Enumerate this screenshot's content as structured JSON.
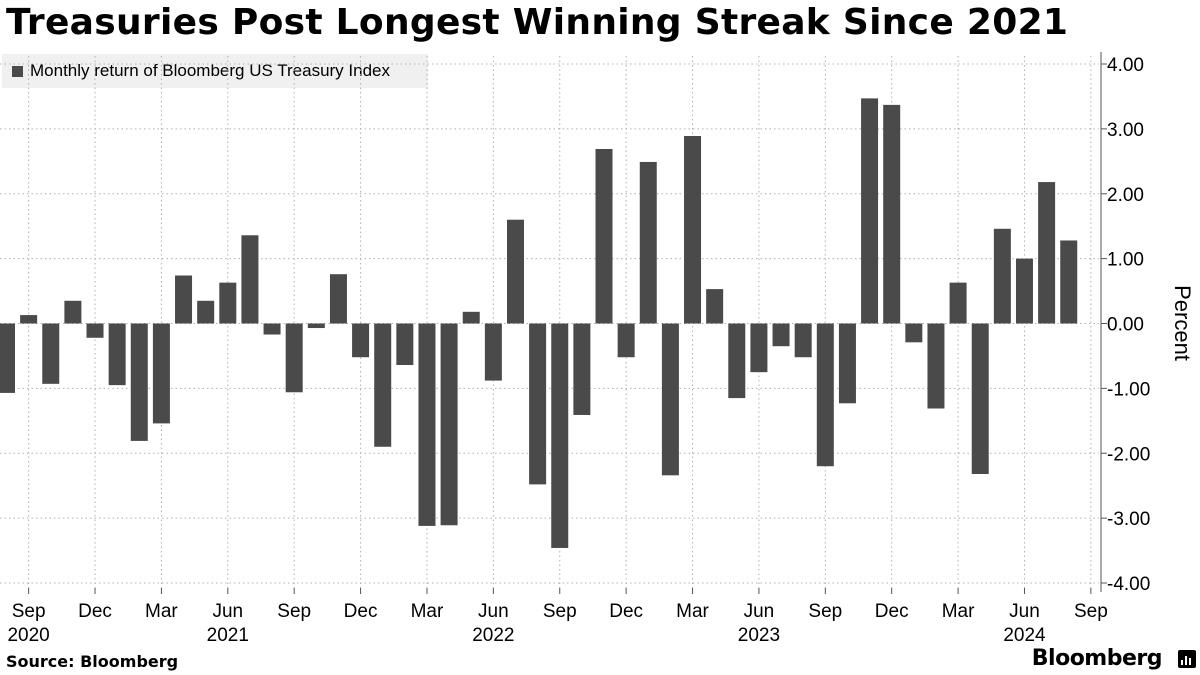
{
  "title": "Treasuries Post Longest Winning Streak Since 2021",
  "source": "Source: Bloomberg",
  "brand": "Bloomberg",
  "brand_icon": "bloomberg-chart-icon",
  "colors": {
    "bar": "#4a4a4a",
    "grid": "#b0b0b0",
    "axis": "#555555",
    "legend_bg": "#f0f0f0"
  },
  "chart_data": {
    "type": "bar",
    "title": "Treasuries Post Longest Winning Streak Since 2021",
    "series": [
      {
        "name": "Monthly return of Bloomberg US Treasury Index",
        "values": [
          -1.07,
          0.13,
          -0.93,
          0.35,
          -0.22,
          -0.95,
          -1.81,
          -1.54,
          0.74,
          0.35,
          0.63,
          1.36,
          -0.17,
          -1.06,
          -0.07,
          0.76,
          -0.52,
          -1.9,
          -0.64,
          -3.12,
          -3.11,
          0.18,
          -0.88,
          1.6,
          -2.48,
          -3.46,
          -1.41,
          2.69,
          -0.52,
          2.49,
          -2.34,
          2.89,
          0.53,
          -1.15,
          -0.75,
          -0.35,
          -0.52,
          -2.2,
          -1.23,
          3.47,
          3.37,
          -0.29,
          -1.31,
          0.63,
          -2.32,
          1.46,
          1.0,
          2.18,
          1.28
        ]
      }
    ],
    "first_month": "2020-08",
    "x_tick_months": [
      "Sep",
      "Dec",
      "Mar",
      "Jun",
      "Sep",
      "Dec",
      "Mar",
      "Jun",
      "Sep",
      "Dec",
      "Mar",
      "Jun",
      "Sep",
      "Dec",
      "Mar",
      "Jun",
      "Sep"
    ],
    "x_tick_index": [
      1,
      4,
      7,
      10,
      13,
      16,
      19,
      22,
      25,
      28,
      31,
      34,
      37,
      40,
      43,
      46,
      49
    ],
    "x_year_labels": [
      "2020",
      "2021",
      "2022",
      "2023",
      "2024"
    ],
    "x_year_index": [
      1,
      10,
      22,
      34,
      46
    ],
    "y_ticks": [
      "4.00",
      "3.00",
      "2.00",
      "1.00",
      "0.00",
      "-1.00",
      "-2.00",
      "-3.00",
      "-4.00"
    ],
    "y_tick_values": [
      4,
      3,
      2,
      1,
      0,
      -1,
      -2,
      -3,
      -4
    ],
    "ylabel": "Percent",
    "xlabel": "",
    "ylim": [
      -4,
      4
    ],
    "grid": true,
    "legend_position": "top-left"
  }
}
